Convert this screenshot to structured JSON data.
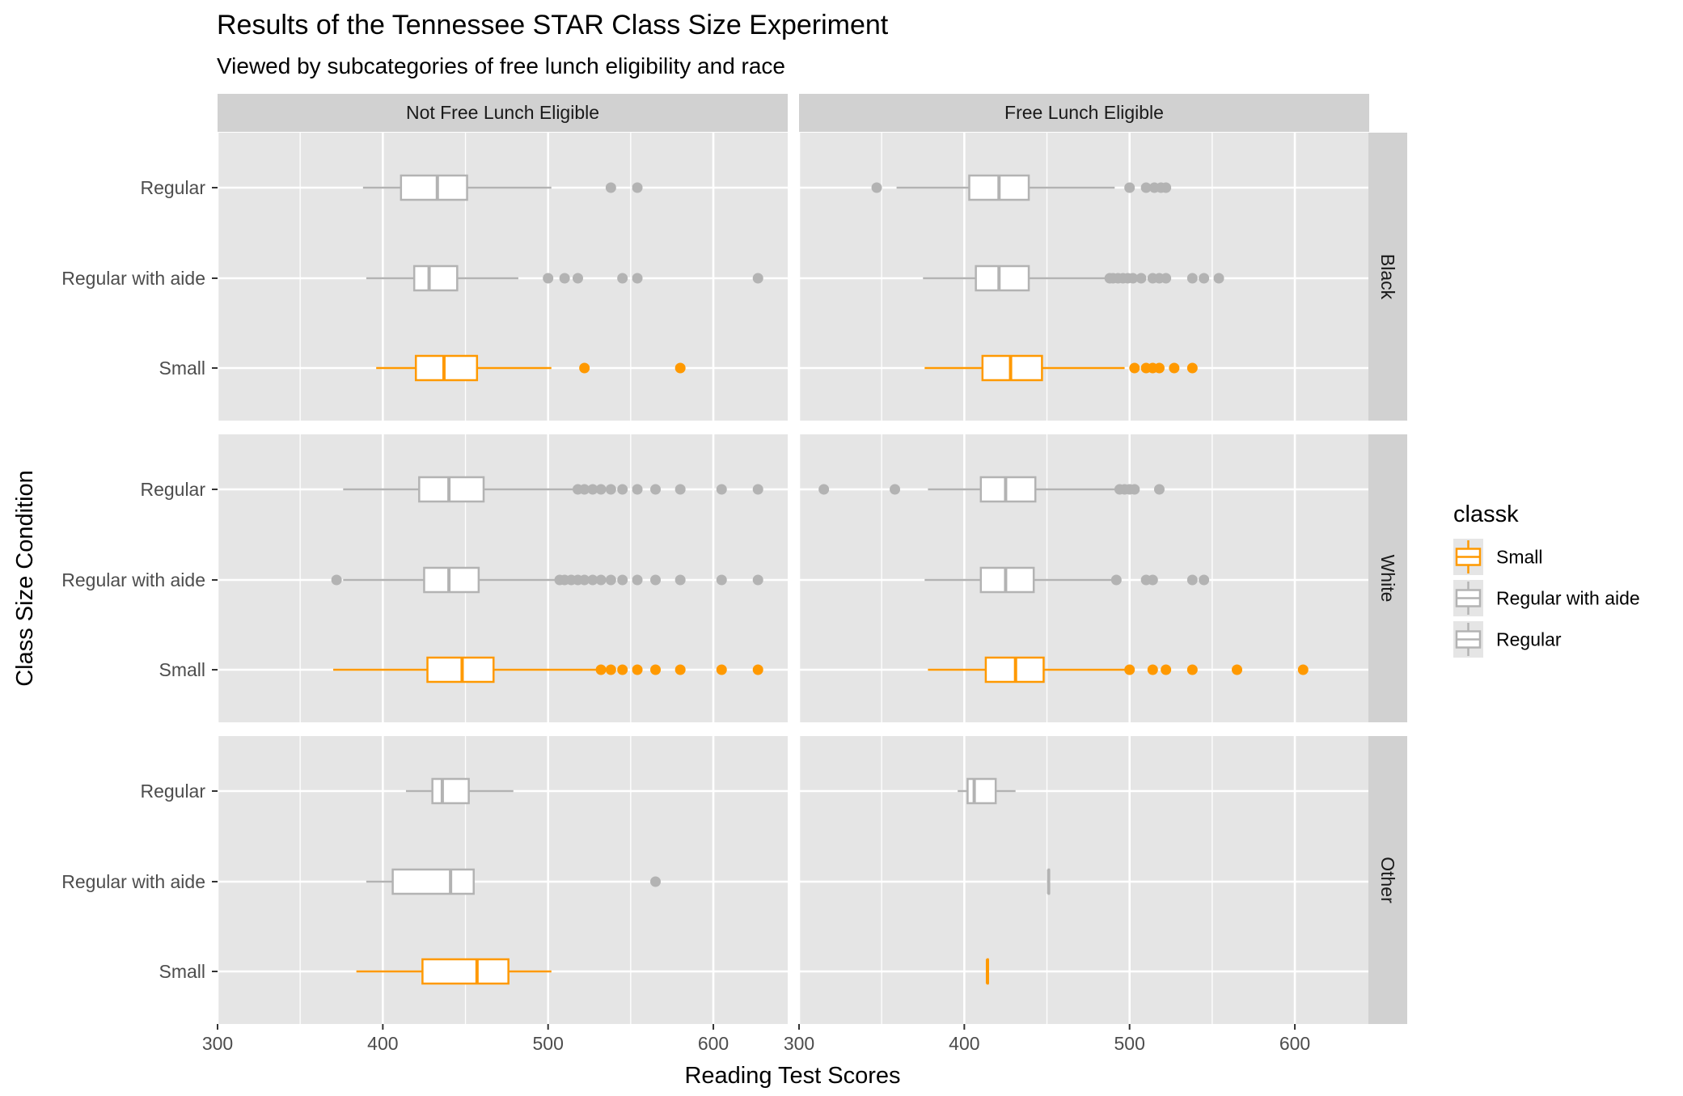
{
  "colors": {
    "small": "#FF9900",
    "regular_with_aide": "#B3B3B3",
    "regular": "#B3B3B3",
    "panel_bg": "#E5E5E5",
    "strip_bg": "#D1D1D1",
    "grid": "#FFFFFF"
  },
  "chart_data": {
    "type": "boxplot",
    "title": "Results of the Tennessee STAR Class Size Experiment",
    "subtitle": "Viewed by subcategories of free lunch eligibility and race",
    "xlabel": "Reading Test Scores",
    "ylabel": "Class Size Condition",
    "xlim": [
      300,
      645
    ],
    "x_ticks": [
      300,
      400,
      500,
      600
    ],
    "categories": [
      "Regular",
      "Regular with aide",
      "Small"
    ],
    "column_facets": [
      "Not Free Lunch Eligible",
      "Free Lunch Eligible"
    ],
    "row_facets": [
      "Black",
      "White",
      "Other"
    ],
    "legend": {
      "title": "classk",
      "position": "right",
      "entries": [
        "Small",
        "Regular with aide",
        "Regular"
      ]
    },
    "panels": [
      {
        "col": "Not Free Lunch Eligible",
        "row": "Black",
        "boxes": [
          {
            "category": "Regular",
            "series": "Regular",
            "whisker_low": 388,
            "q1": 411,
            "median": 433,
            "q3": 451,
            "whisker_high": 502,
            "outliers": [
              538,
              554
            ]
          },
          {
            "category": "Regular with aide",
            "series": "Regular with aide",
            "whisker_low": 390,
            "q1": 419,
            "median": 428,
            "q3": 445,
            "whisker_high": 482,
            "outliers": [
              500,
              510,
              518,
              545,
              554,
              627
            ]
          },
          {
            "category": "Small",
            "series": "Small",
            "whisker_low": 396,
            "q1": 420,
            "median": 437,
            "q3": 457,
            "whisker_high": 502,
            "outliers": [
              522,
              580
            ]
          }
        ]
      },
      {
        "col": "Free Lunch Eligible",
        "row": "Black",
        "boxes": [
          {
            "category": "Regular",
            "series": "Regular",
            "whisker_low": 359,
            "q1": 403,
            "median": 421,
            "q3": 439,
            "whisker_high": 491,
            "outliers": [
              347,
              500,
              510,
              515,
              519,
              522
            ]
          },
          {
            "category": "Regular with aide",
            "series": "Regular with aide",
            "whisker_low": 375,
            "q1": 407,
            "median": 421,
            "q3": 439,
            "whisker_high": 485,
            "outliers": [
              488,
              490,
              493,
              496,
              499,
              502,
              507,
              514,
              518,
              522,
              538,
              545,
              554
            ]
          },
          {
            "category": "Small",
            "series": "Small",
            "whisker_low": 376,
            "q1": 411,
            "median": 428,
            "q3": 447,
            "whisker_high": 497,
            "outliers": [
              503,
              510,
              514,
              518,
              527,
              538
            ]
          }
        ]
      },
      {
        "col": "Not Free Lunch Eligible",
        "row": "White",
        "boxes": [
          {
            "category": "Regular",
            "series": "Regular",
            "whisker_low": 376,
            "q1": 422,
            "median": 440,
            "q3": 461,
            "whisker_high": 515,
            "outliers": [
              518,
              522,
              527,
              532,
              538,
              545,
              554,
              565,
              580,
              605,
              627
            ]
          },
          {
            "category": "Regular with aide",
            "series": "Regular with aide",
            "whisker_low": 376,
            "q1": 425,
            "median": 440,
            "q3": 458,
            "whisker_high": 505,
            "outliers": [
              372,
              507,
              510,
              514,
              518,
              522,
              527,
              532,
              538,
              545,
              554,
              565,
              580,
              605,
              627
            ]
          },
          {
            "category": "Small",
            "series": "Small",
            "whisker_low": 370,
            "q1": 427,
            "median": 448,
            "q3": 467,
            "whisker_high": 529,
            "outliers": [
              532,
              538,
              545,
              554,
              565,
              580,
              605,
              627
            ]
          }
        ]
      },
      {
        "col": "Free Lunch Eligible",
        "row": "White",
        "boxes": [
          {
            "category": "Regular",
            "series": "Regular",
            "whisker_low": 378,
            "q1": 410,
            "median": 425,
            "q3": 443,
            "whisker_high": 492,
            "outliers": [
              315,
              358,
              494,
              497,
              500,
              503,
              518
            ]
          },
          {
            "category": "Regular with aide",
            "series": "Regular with aide",
            "whisker_low": 376,
            "q1": 410,
            "median": 425,
            "q3": 442,
            "whisker_high": 490,
            "outliers": [
              492,
              510,
              514,
              538,
              545
            ]
          },
          {
            "category": "Small",
            "series": "Small",
            "whisker_low": 378,
            "q1": 413,
            "median": 431,
            "q3": 448,
            "whisker_high": 497,
            "outliers": [
              500,
              514,
              522,
              538,
              565,
              605
            ]
          }
        ]
      },
      {
        "col": "Not Free Lunch Eligible",
        "row": "Other",
        "boxes": [
          {
            "category": "Regular",
            "series": "Regular",
            "whisker_low": 414,
            "q1": 430,
            "median": 436,
            "q3": 452,
            "whisker_high": 479,
            "outliers": []
          },
          {
            "category": "Regular with aide",
            "series": "Regular with aide",
            "whisker_low": 390,
            "q1": 406,
            "median": 441,
            "q3": 455,
            "whisker_high": 455,
            "outliers": [
              565
            ]
          },
          {
            "category": "Small",
            "series": "Small",
            "whisker_low": 384,
            "q1": 424,
            "median": 457,
            "q3": 476,
            "whisker_high": 502,
            "outliers": []
          }
        ]
      },
      {
        "col": "Free Lunch Eligible",
        "row": "Other",
        "boxes": [
          {
            "category": "Regular",
            "series": "Regular",
            "whisker_low": 396,
            "q1": 402,
            "median": 406,
            "q3": 419,
            "whisker_high": 431,
            "outliers": []
          },
          {
            "category": "Regular with aide",
            "series": "Regular with aide",
            "whisker_low": 451,
            "q1": 451,
            "median": 451,
            "q3": 451,
            "whisker_high": 451,
            "outliers": []
          },
          {
            "category": "Small",
            "series": "Small",
            "whisker_low": 414,
            "q1": 414,
            "median": 414,
            "q3": 414,
            "whisker_high": 414,
            "outliers": []
          }
        ]
      }
    ]
  }
}
